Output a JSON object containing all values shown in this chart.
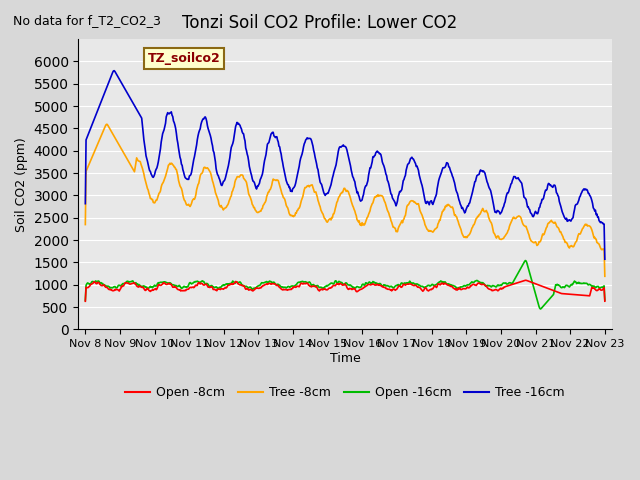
{
  "title": "Tonzi Soil CO2 Profile: Lower CO2",
  "subtitle": "No data for f_T2_CO2_3",
  "ylabel": "Soil CO2 (ppm)",
  "xlabel": "Time",
  "annotation": "TZ_soilco2",
  "ylim": [
    0,
    6500
  ],
  "yticks": [
    0,
    500,
    1000,
    1500,
    2000,
    2500,
    3000,
    3500,
    4000,
    4500,
    5000,
    5500,
    6000
  ],
  "bg_color": "#e8e8e8",
  "plot_bg_color": "#e8e8e8",
  "legend": [
    "Open -8cm",
    "Tree -8cm",
    "Open -16cm",
    "Tree -16cm"
  ],
  "legend_colors": [
    "#ff0000",
    "#ffa500",
    "#00cc00",
    "#0000ff"
  ],
  "x_tick_labels": [
    "Nov 8",
    "Nov 9",
    "Nov 10",
    "Nov 11",
    "Nov 12",
    "Nov 13",
    "Nov 14",
    "Nov 15",
    "Nov 16",
    "Nov 17",
    "Nov 18",
    "Nov 19",
    "Nov 20",
    "Nov 21",
    "Nov 22",
    "Nov 23"
  ]
}
